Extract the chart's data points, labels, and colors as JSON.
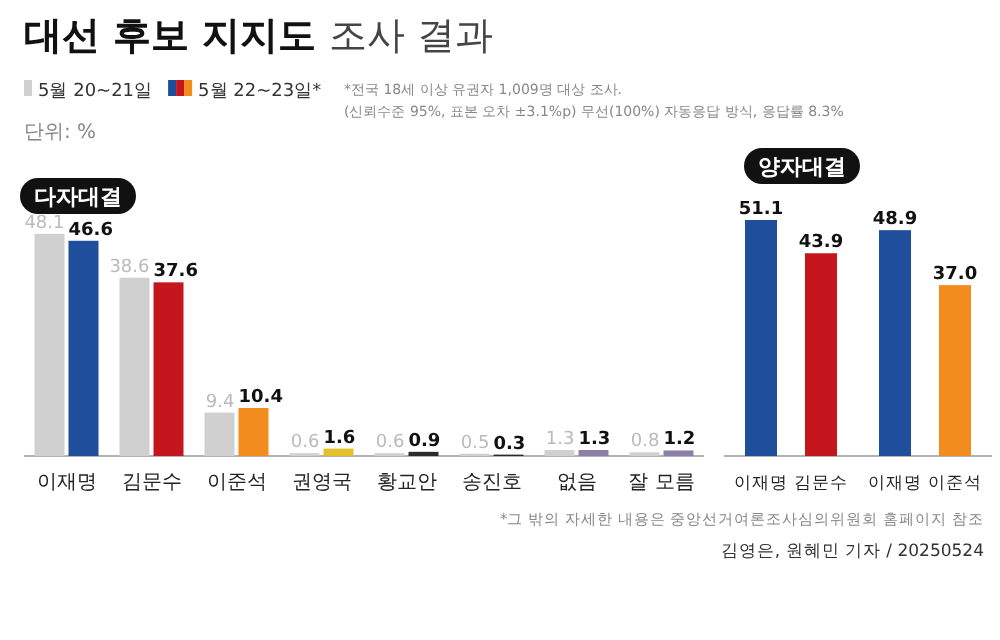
{
  "chart_data": [
    {
      "type": "bar",
      "title": "대선 후보 지지도 조사 결과",
      "subtitle": "다자대결",
      "categories": [
        "이재명",
        "김문수",
        "이준석",
        "권영국",
        "황교안",
        "송진호",
        "없음",
        "잘 모름"
      ],
      "series": [
        {
          "name": "5월 20~21일",
          "color": "#d0d0d0",
          "values": [
            48.1,
            38.6,
            9.4,
            0.6,
            0.6,
            0.5,
            1.3,
            0.8
          ]
        },
        {
          "name": "5월 22~23일*",
          "color": "#1f4e9c",
          "colors": [
            "#1f4e9c",
            "#c4161c",
            "#f28c1e",
            "#e3c12b",
            "#2b2b2b",
            "#2b2b2b",
            "#8c80a8",
            "#8c80a8"
          ],
          "values": [
            46.6,
            37.6,
            10.4,
            1.6,
            0.9,
            0.3,
            1.3,
            1.2
          ]
        }
      ],
      "data_labels": true,
      "legend": "top left",
      "annotations": [
        "*전국 18세 이상 유권자 1,009명 대상 조사.",
        "(신뢰수준 95%, 표본 오차 ±3.1%p) 무선(100%) 자동응답 방식, 응답률 8.3%",
        "단위: %",
        "*그 밖의 자세한 내용은 중앙선거여론조사심의위원회 홈페이지 참조",
        "김영은, 원혜민 기자 / 20250524"
      ]
    },
    {
      "type": "bar",
      "title": "양자대결",
      "categories": [
        "이재명",
        "김문수",
        "이재명",
        "이준석"
      ],
      "values": [
        51.1,
        43.9,
        48.9,
        37.0
      ],
      "colors": [
        "#1f4e9c",
        "#c4161c",
        "#1f4e9c",
        "#f28c1e"
      ],
      "value_labels": [
        "51.1",
        "43.9",
        "48.9",
        "37.0"
      ]
    }
  ]
}
